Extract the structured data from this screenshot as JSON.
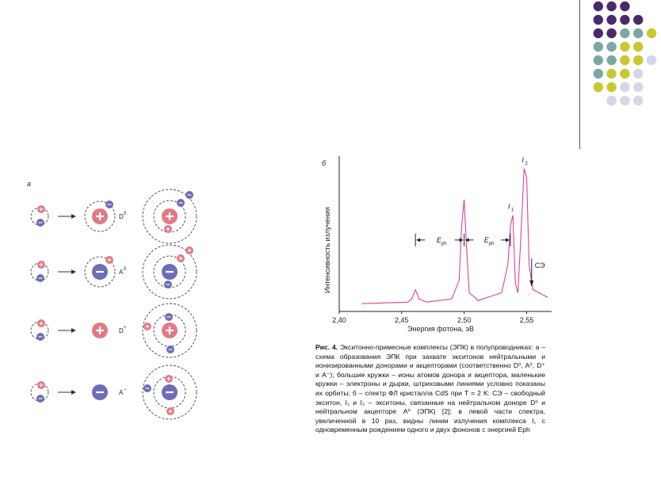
{
  "decor": {
    "colors": {
      "purple": "#4a2a6a",
      "teal": "#7aa9a4",
      "olive": "#c8c830",
      "lavender": "#d6d6ea"
    }
  },
  "figure_a": {
    "label": "а",
    "rows": [
      {
        "ion_label": "D",
        "ion_sup": "0"
      },
      {
        "ion_label": "A",
        "ion_sup": "0"
      },
      {
        "ion_label": "D",
        "ion_sup": "+"
      },
      {
        "ion_label": "A",
        "ion_sup": "–"
      }
    ],
    "colors": {
      "positive": "#e07a84",
      "negative": "#6d6db8"
    }
  },
  "figure_b": {
    "label": "б",
    "ylabel": "Интенсивность излучения",
    "xlabel": "Энергия фотона, эВ",
    "xticks": [
      "2,40",
      "2,45",
      "2,50",
      "2,55"
    ],
    "annotations": {
      "eph1": "E",
      "eph2": "E",
      "eph_sub": "ph",
      "i1": "I",
      "i1_sub": "1",
      "i2": "I",
      "i2_sub": "2",
      "ce": "СЭ"
    },
    "line_color": "#e0409a"
  },
  "chart_data": {
    "type": "line",
    "title": "",
    "xlabel": "Энергия фотона, эВ",
    "ylabel": "Интенсивность излучения",
    "xlim": [
      2.4,
      2.57
    ],
    "ylim": [
      0,
      1
    ],
    "xticks": [
      2.4,
      2.45,
      2.5,
      2.55
    ],
    "series": [
      {
        "x": [
          2.418,
          2.455,
          2.458,
          2.461,
          2.464,
          2.47,
          2.49,
          2.496,
          2.498,
          2.5,
          2.502,
          2.504,
          2.51,
          2.511,
          2.53,
          2.535,
          2.537,
          2.539,
          2.541,
          2.543,
          2.545,
          2.548,
          2.55,
          2.552,
          2.555,
          2.56,
          2.567
        ],
        "y": [
          0.05,
          0.06,
          0.08,
          0.14,
          0.08,
          0.06,
          0.08,
          0.2,
          0.55,
          0.72,
          0.4,
          0.12,
          0.08,
          0.07,
          0.12,
          0.3,
          0.55,
          0.62,
          0.18,
          0.12,
          0.42,
          0.92,
          0.86,
          0.3,
          0.14,
          0.12,
          0.09
        ]
      }
    ]
  },
  "caption": {
    "bold": "Рис. 4.",
    "text": " Экситонно-примесные комплексы (ЭПК) в полупроводниках: а – схема образования ЭПК при захвате экситонов нейтральными и ионизированными донорами и акцепторами (соответственно D⁰, A⁰, D⁺ и A⁻); большие кружки – ионы атомов донора и акцептора, маленькие кружки – электроны и дырки, штриховыми линиями условно показаны их орбиты; б – спектр ФЛ кристалла CdS при T = 2 K: СЭ – свободный экситон, I₁ и I₂ – экситоны, связанные на нейтральном доноре D⁰ и нейтральном акцепторе A⁰ (ЭПК) [2]; в левой части спектра, увеличенной в 10 раз, видны линии излучения комплекса I₁ с одновременным рождением одного и двух фононов с энергией Eph"
  }
}
